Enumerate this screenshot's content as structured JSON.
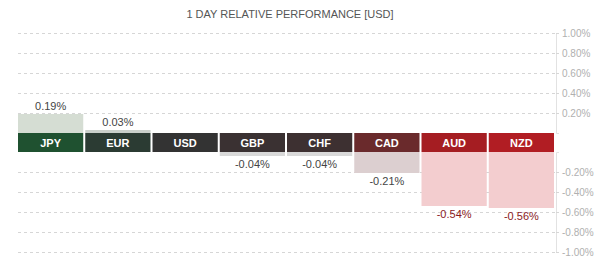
{
  "chart_data": {
    "type": "bar",
    "title": "1 DAY RELATIVE PERFORMANCE [USD]",
    "categories": [
      "JPY",
      "EUR",
      "USD",
      "GBP",
      "CHF",
      "CAD",
      "AUD",
      "NZD"
    ],
    "values": [
      0.19,
      0.03,
      0,
      -0.04,
      -0.04,
      -0.21,
      -0.54,
      -0.56
    ],
    "value_labels": [
      "0.19%",
      "0.03%",
      null,
      "-0.04%",
      "-0.04%",
      "-0.21%",
      "-0.54%",
      "-0.56%"
    ],
    "colors": [
      "#d5ddd3",
      "#c9cfca",
      "#d8d8d8",
      "#d9d9d9",
      "#d9d9d9",
      "#dccfd0",
      "#f3cdcf",
      "#f3cdcf"
    ],
    "ylim": [
      -1,
      1
    ],
    "yticks": [
      {
        "value": 1,
        "label": "1.00%"
      },
      {
        "value": 0.8,
        "label": "0.80%"
      },
      {
        "value": 0.6,
        "label": "0.60%"
      },
      {
        "value": 0.4,
        "label": "0.40%"
      },
      {
        "value": 0.2,
        "label": "0.20%"
      },
      {
        "value": -0.2,
        "label": "-0.20%"
      },
      {
        "value": -0.4,
        "label": "-0.40%"
      },
      {
        "value": -0.6,
        "label": "-0.60%"
      },
      {
        "value": -0.8,
        "label": "-0.80%"
      },
      {
        "value": -1,
        "label": "-1.00%"
      }
    ],
    "grid": true,
    "data_labels": true
  }
}
